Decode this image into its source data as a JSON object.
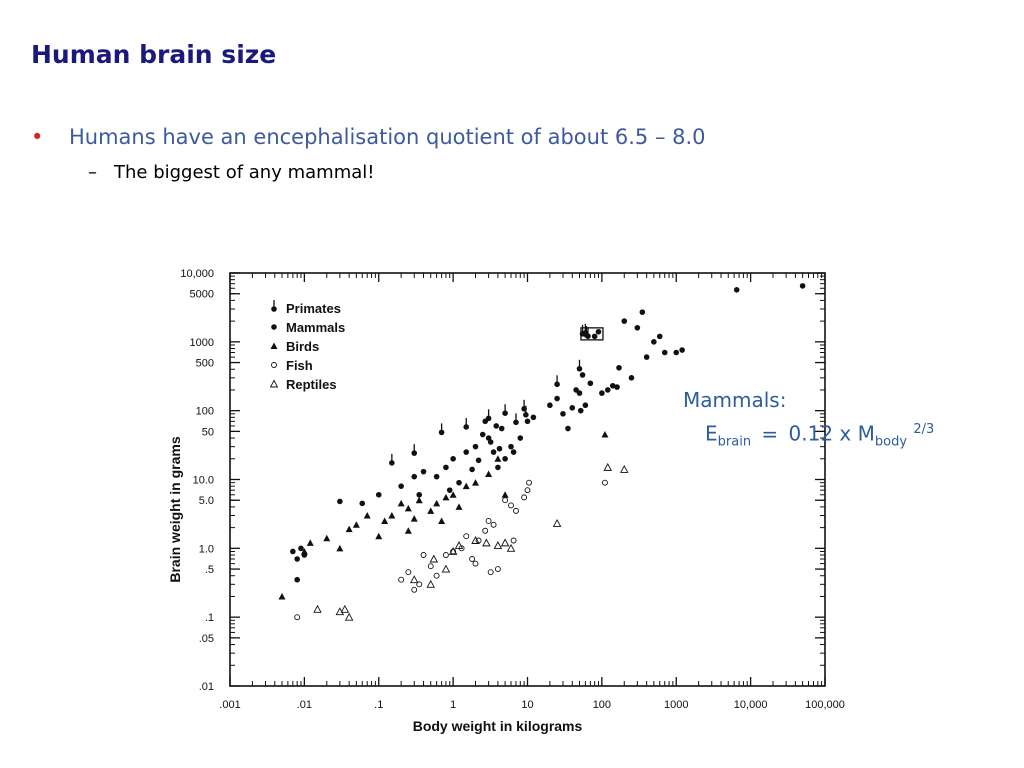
{
  "slide": {
    "title": "Human brain size",
    "bullet": "Humans have an encephalisation quotient of about 6.5 – 8.0",
    "sub_bullet": "The biggest of any mammal!",
    "bullet_color": "#e02020",
    "title_color": "#1a1a7a",
    "text_color": "#3d5a9e"
  },
  "formula": {
    "heading": "Mammals:",
    "E": "E",
    "E_sub": "brain",
    "equals": "=",
    "coef": "0.12 x M",
    "M_sub": "body",
    "exp": "2/3",
    "color": "#2f5d9c"
  },
  "chart_data": {
    "type": "scatter",
    "x_scale": "log",
    "y_scale": "log",
    "xlabel": "Body weight in kilograms",
    "ylabel": "Brain weight in grams",
    "xlim": [
      0.001,
      100000
    ],
    "ylim": [
      0.01,
      10000
    ],
    "x_ticks": [
      ".001",
      ".01",
      ".1",
      "1",
      "10",
      "100",
      "1000",
      "10,000",
      "100,000"
    ],
    "y_ticks": [
      "10,000",
      "5000",
      "1000",
      "500",
      "100",
      "50",
      "10.0",
      "5.0",
      "1.0",
      ".5",
      ".1",
      ".05",
      ".01"
    ],
    "y_tick_values": [
      10000,
      5000,
      1000,
      500,
      100,
      50,
      10,
      5,
      1,
      0.5,
      0.1,
      0.05,
      0.01
    ],
    "legend_position": "top-left",
    "grid": false,
    "series": [
      {
        "name": "Primates",
        "marker": "primate",
        "points": [
          [
            0.15,
            18
          ],
          [
            0.3,
            25
          ],
          [
            0.7,
            50
          ],
          [
            1.5,
            60
          ],
          [
            3,
            80
          ],
          [
            5,
            95
          ],
          [
            7,
            70
          ],
          [
            9,
            110
          ],
          [
            9.5,
            90
          ],
          [
            25,
            250
          ],
          [
            50,
            420
          ],
          [
            55,
            1350
          ],
          [
            60,
            1400
          ],
          [
            62,
            1300
          ],
          [
            65,
            1250
          ]
        ]
      },
      {
        "name": "Mammals",
        "marker": "dot",
        "points": [
          [
            0.007,
            0.9
          ],
          [
            0.008,
            0.7
          ],
          [
            0.009,
            1.0
          ],
          [
            0.01,
            0.8
          ],
          [
            0.008,
            0.35
          ],
          [
            0.03,
            4.8
          ],
          [
            0.06,
            4.5
          ],
          [
            0.1,
            6.0
          ],
          [
            0.2,
            8.0
          ],
          [
            0.3,
            11
          ],
          [
            0.4,
            13
          ],
          [
            0.6,
            11
          ],
          [
            0.8,
            15
          ],
          [
            1.0,
            20
          ],
          [
            1.5,
            25
          ],
          [
            2.0,
            30
          ],
          [
            2.5,
            45
          ],
          [
            3.0,
            40
          ],
          [
            3.5,
            25
          ],
          [
            4.0,
            15
          ],
          [
            5.0,
            20
          ],
          [
            6,
            30
          ],
          [
            4.5,
            55
          ],
          [
            2.7,
            70
          ],
          [
            3.2,
            35
          ],
          [
            1.2,
            9
          ],
          [
            1.8,
            14
          ],
          [
            2.2,
            19
          ],
          [
            0.9,
            7
          ],
          [
            0.35,
            6
          ],
          [
            3.8,
            60
          ],
          [
            4.2,
            28
          ],
          [
            6.5,
            25
          ],
          [
            8,
            40
          ],
          [
            10,
            70
          ],
          [
            12,
            80
          ],
          [
            20,
            120
          ],
          [
            25,
            150
          ],
          [
            30,
            90
          ],
          [
            35,
            55
          ],
          [
            40,
            110
          ],
          [
            45,
            200
          ],
          [
            50,
            180
          ],
          [
            52,
            100
          ],
          [
            55,
            330
          ],
          [
            60,
            120
          ],
          [
            70,
            250
          ],
          [
            80,
            1200
          ],
          [
            90,
            1400
          ],
          [
            100,
            180
          ],
          [
            120,
            200
          ],
          [
            140,
            230
          ],
          [
            160,
            220
          ],
          [
            200,
            2000
          ],
          [
            170,
            420
          ],
          [
            250,
            300
          ],
          [
            300,
            1600
          ],
          [
            350,
            2700
          ],
          [
            400,
            600
          ],
          [
            500,
            1000
          ],
          [
            600,
            1200
          ],
          [
            700,
            700
          ],
          [
            1000,
            700
          ],
          [
            1200,
            760
          ],
          [
            6500,
            5700
          ],
          [
            50000,
            6500
          ]
        ]
      },
      {
        "name": "Birds",
        "marker": "triangle",
        "points": [
          [
            0.005,
            0.2
          ],
          [
            0.01,
            0.9
          ],
          [
            0.012,
            1.2
          ],
          [
            0.02,
            1.4
          ],
          [
            0.03,
            1.0
          ],
          [
            0.04,
            1.9
          ],
          [
            0.05,
            2.2
          ],
          [
            0.07,
            3.0
          ],
          [
            0.1,
            1.5
          ],
          [
            0.12,
            2.5
          ],
          [
            0.15,
            3.0
          ],
          [
            0.2,
            4.5
          ],
          [
            0.25,
            3.8
          ],
          [
            0.3,
            2.7
          ],
          [
            0.35,
            5.0
          ],
          [
            0.5,
            3.5
          ],
          [
            0.6,
            4.5
          ],
          [
            0.8,
            5.5
          ],
          [
            1.0,
            6.0
          ],
          [
            1.5,
            8
          ],
          [
            2.0,
            9
          ],
          [
            3.0,
            12
          ],
          [
            4.0,
            20
          ],
          [
            5,
            6
          ],
          [
            1.2,
            4
          ],
          [
            0.7,
            2.5
          ],
          [
            0.25,
            1.8
          ],
          [
            110,
            45
          ]
        ]
      },
      {
        "name": "Fish",
        "marker": "circle",
        "points": [
          [
            0.008,
            0.1
          ],
          [
            0.2,
            0.35
          ],
          [
            0.25,
            0.45
          ],
          [
            0.3,
            0.25
          ],
          [
            0.35,
            0.3
          ],
          [
            0.4,
            0.8
          ],
          [
            0.5,
            0.55
          ],
          [
            0.6,
            0.4
          ],
          [
            0.8,
            0.8
          ],
          [
            1.0,
            0.9
          ],
          [
            1.3,
            1.0
          ],
          [
            1.5,
            1.5
          ],
          [
            2.0,
            0.6
          ],
          [
            2.2,
            1.3
          ],
          [
            2.7,
            1.8
          ],
          [
            3.0,
            2.5
          ],
          [
            3.5,
            2.2
          ],
          [
            4.0,
            0.5
          ],
          [
            5,
            5.0
          ],
          [
            6,
            4.2
          ],
          [
            7,
            3.5
          ],
          [
            9,
            5.5
          ],
          [
            10,
            7.0
          ],
          [
            10.5,
            9.0
          ],
          [
            3.2,
            0.45
          ],
          [
            1.8,
            0.7
          ],
          [
            6.5,
            1.3
          ],
          [
            110,
            9
          ]
        ]
      },
      {
        "name": "Reptiles",
        "marker": "open-triangle",
        "points": [
          [
            0.015,
            0.13
          ],
          [
            0.03,
            0.12
          ],
          [
            0.035,
            0.13
          ],
          [
            0.04,
            0.1
          ],
          [
            0.3,
            0.35
          ],
          [
            0.5,
            0.3
          ],
          [
            0.55,
            0.7
          ],
          [
            0.8,
            0.5
          ],
          [
            1.0,
            0.9
          ],
          [
            1.2,
            1.1
          ],
          [
            2.0,
            1.3
          ],
          [
            2.8,
            1.2
          ],
          [
            4.0,
            1.1
          ],
          [
            5,
            1.2
          ],
          [
            6,
            1.0
          ],
          [
            25,
            2.3
          ],
          [
            120,
            15
          ],
          [
            200,
            14
          ]
        ]
      }
    ]
  }
}
